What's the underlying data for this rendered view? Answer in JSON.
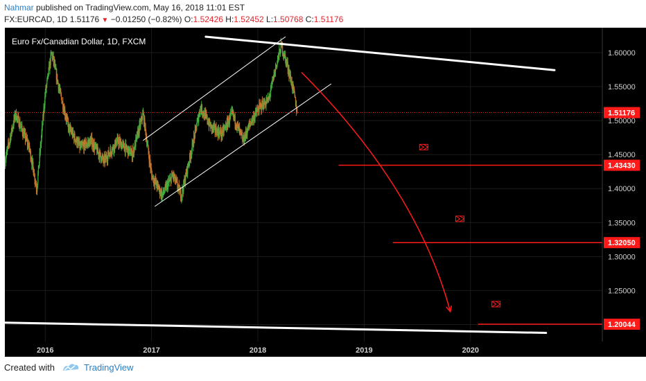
{
  "header": {
    "author": "Nahmar",
    "published_text": "published on TradingView.com, May 16, 2018 11:01 EST",
    "symbol_line": "FX:EURCAD, 1D",
    "last": "1.51176",
    "change": "−0.01250 (−0.82%)",
    "o_label": "O:",
    "o_val": "1.52426",
    "h_label": "H:",
    "h_val": "1.52452",
    "l_label": "L:",
    "l_val": "1.50768",
    "c_label": "C:",
    "c_val": "1.51176"
  },
  "footer": {
    "created_with": "Created with",
    "brand": "TradingView"
  },
  "colors": {
    "background": "#000000",
    "bullish": "#3fae3f",
    "bearish": "#c8762f",
    "accent_red": "#ff1a1a",
    "white": "#ffffff"
  },
  "chart_data": {
    "type": "candlestick",
    "title": "Euro Fx/Canadian Dollar, 1D, FXCM",
    "x_ticks": [
      "2016",
      "2017",
      "2018",
      "2019",
      "2020"
    ],
    "y_ticks": [
      "1.60000",
      "1.55000",
      "1.50000",
      "1.45000",
      "1.40000",
      "1.35000",
      "1.30000",
      "1.25000",
      "1.20000"
    ],
    "ylim": [
      1.175,
      1.6244
    ],
    "xlim": [
      2015.62,
      2021.24
    ],
    "price_path": [
      [
        2015.62,
        1.44
      ],
      [
        2015.72,
        1.51
      ],
      [
        2015.85,
        1.46
      ],
      [
        2015.92,
        1.4
      ],
      [
        2016.0,
        1.54
      ],
      [
        2016.06,
        1.6
      ],
      [
        2016.14,
        1.54
      ],
      [
        2016.22,
        1.49
      ],
      [
        2016.33,
        1.46
      ],
      [
        2016.43,
        1.47
      ],
      [
        2016.55,
        1.44
      ],
      [
        2016.68,
        1.47
      ],
      [
        2016.82,
        1.45
      ],
      [
        2016.92,
        1.51
      ],
      [
        2017.0,
        1.42
      ],
      [
        2017.1,
        1.39
      ],
      [
        2017.2,
        1.42
      ],
      [
        2017.28,
        1.39
      ],
      [
        2017.38,
        1.46
      ],
      [
        2017.46,
        1.52
      ],
      [
        2017.56,
        1.49
      ],
      [
        2017.66,
        1.48
      ],
      [
        2017.76,
        1.51
      ],
      [
        2017.86,
        1.47
      ],
      [
        2017.94,
        1.5
      ],
      [
        2018.02,
        1.52
      ],
      [
        2018.1,
        1.53
      ],
      [
        2018.17,
        1.58
      ],
      [
        2018.22,
        1.61
      ],
      [
        2018.28,
        1.58
      ],
      [
        2018.34,
        1.54
      ],
      [
        2018.37,
        1.51176
      ]
    ],
    "current_price": {
      "value": 1.51176,
      "label": "1.51176"
    },
    "levels": [
      {
        "value": 1.4343,
        "label": "1.43430",
        "from_x": 2018.76
      },
      {
        "value": 1.3205,
        "label": "1.32050",
        "from_x": 2019.27
      },
      {
        "value": 1.20044,
        "label": "1.20044",
        "from_x": 2020.07
      }
    ],
    "trendlines": [
      {
        "name": "upper-resistance",
        "from": [
          2017.51,
          1.6234
        ],
        "to": [
          2020.79,
          1.5742
        ]
      },
      {
        "name": "lower-support",
        "from": [
          2015.62,
          1.2028
        ],
        "to": [
          2020.71,
          1.1877
        ]
      }
    ],
    "channel": [
      {
        "name": "channel-upper",
        "from": [
          2016.92,
          1.4707
        ],
        "to": [
          2018.26,
          1.6234
        ]
      },
      {
        "name": "channel-lower",
        "from": [
          2017.03,
          1.3737
        ],
        "to": [
          2018.69,
          1.5541
        ]
      }
    ],
    "projection_arrow": {
      "from": [
        2018.41,
        1.5711
      ],
      "ctrl": [
        2019.5,
        1.4
      ],
      "to": [
        2019.81,
        1.2189
      ]
    },
    "flags": [
      [
        2019.56,
        1.461
      ],
      [
        2019.9,
        1.3555
      ],
      [
        2020.24,
        1.23
      ]
    ]
  }
}
